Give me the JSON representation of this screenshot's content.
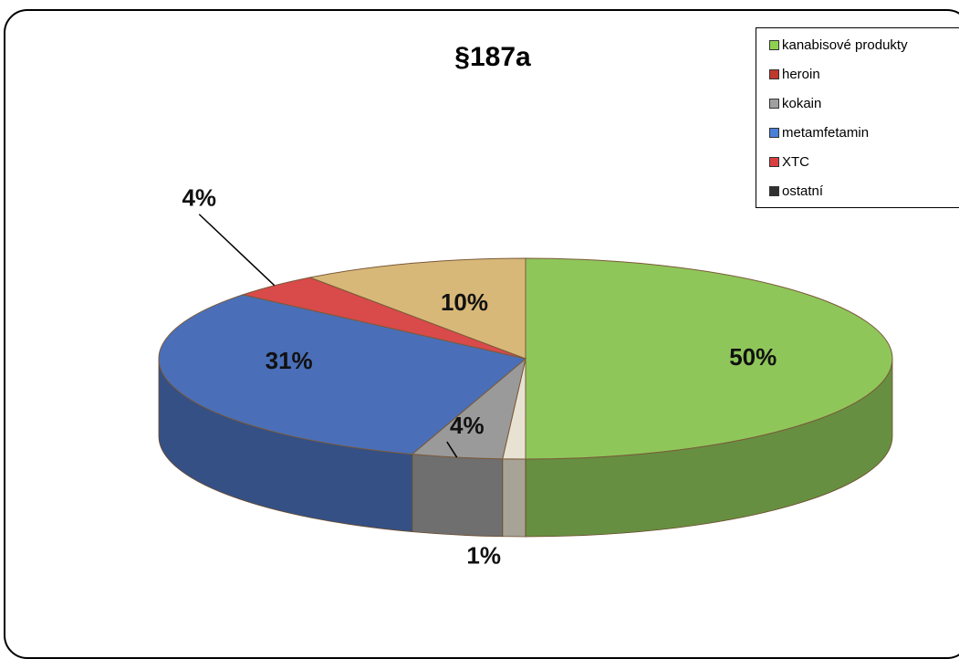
{
  "chart_data": {
    "type": "pie",
    "title": "§187a",
    "categories": [
      "kanabisové produkty",
      "heroin",
      "kokain",
      "metamfetamin",
      "XTC",
      "ostatní"
    ],
    "values": [
      50,
      1,
      4,
      31,
      4,
      10
    ],
    "labels": [
      "50%",
      "1%",
      "4%",
      "31%",
      "4%",
      "10%"
    ],
    "colors": [
      "#8fc65a",
      "#e8e2d2",
      "#9a9a9a",
      "#4a6fb8",
      "#d94a4a",
      "#d8b878"
    ],
    "legend_position": "top-right",
    "legend": [
      {
        "label": "kanabisové produkty",
        "color": "#8fd14f"
      },
      {
        "label": "heroin",
        "color": "#c0392b"
      },
      {
        "label": "kokain",
        "color": "#a0a0a0"
      },
      {
        "label": "metamfetamin",
        "color": "#4a7fd8"
      },
      {
        "label": "XTC",
        "color": "#d94040"
      },
      {
        "label": "ostatní",
        "color": "#303030"
      }
    ]
  }
}
